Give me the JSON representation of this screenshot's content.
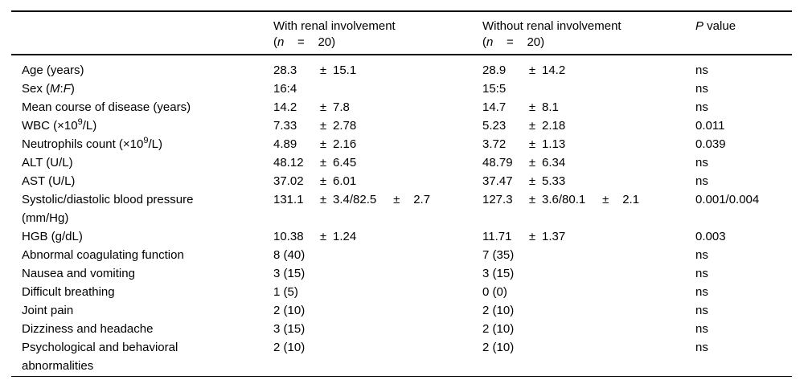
{
  "colors": {
    "background": "#ffffff",
    "text": "#000000",
    "rules": "#000000"
  },
  "table": {
    "header": {
      "col_characteristic": {
        "text": ""
      },
      "col_with": {
        "text": "With renal involvement (n = 20)",
        "html": "With renal involvement<br>(<i>n</i>&nbsp;&nbsp;&nbsp;&nbsp;=&nbsp;&nbsp;&nbsp;&nbsp;20)"
      },
      "col_without": {
        "text": "Without renal involvement (n = 20)",
        "html": "Without renal involvement<br>(<i>n</i>&nbsp;&nbsp;&nbsp;&nbsp;=&nbsp;&nbsp;&nbsp;&nbsp;20)"
      },
      "col_p": {
        "text": "P value",
        "html": "<i>P</i> value"
      }
    },
    "rows": [
      {
        "label": "Age (years)",
        "label_html": "Age (years)",
        "with": "28.3 ± 15.1",
        "without": "28.9 ± 14.2",
        "p": "ns"
      },
      {
        "label": "Sex (M:F)",
        "label_html": "Sex (<i>M</i>:<i>F</i>)",
        "with": "16:4",
        "without": "15:5",
        "p": "ns"
      },
      {
        "label": "Mean course of disease (years)",
        "label_html": "Mean course of disease (years)",
        "with": "14.2 ± 7.8",
        "without": "14.7 ± 8.1",
        "p": "ns"
      },
      {
        "label": "WBC (×10^9/L)",
        "label_html": "WBC (×10<sup>9</sup>/L)",
        "with": "7.33 ± 2.78",
        "without": "5.23 ± 2.18",
        "p": "0.011"
      },
      {
        "label": "Neutrophils count (×10^9/L)",
        "label_html": "Neutrophils count (×10<sup>9</sup>/L)",
        "with": "4.89 ± 2.16",
        "without": "3.72 ± 1.13",
        "p": "0.039"
      },
      {
        "label": "ALT (U/L)",
        "label_html": "ALT (U/L)",
        "with": "48.12 ± 6.45",
        "without": "48.79 ± 6.34",
        "p": "ns"
      },
      {
        "label": "AST (U/L)",
        "label_html": "AST (U/L)",
        "with": "37.02 ± 6.01",
        "without": "37.47 ± 5.33",
        "p": "ns"
      },
      {
        "label": "Systolic/diastolic blood pressure (mm/Hg)",
        "label_html": "Systolic/diastolic blood pressure<br>(mm/Hg)",
        "with": "131.1 ± 3.4/82.5 ± 2.7",
        "without": "127.3 ± 3.6/80.1 ± 2.1",
        "p": "0.001/0.004"
      },
      {
        "label": "HGB (g/dL)",
        "label_html": "HGB (g/dL)",
        "with": "10.38 ± 1.24",
        "without": "11.71 ± 1.37",
        "p": "0.003"
      },
      {
        "label": "Abnormal coagulating function",
        "label_html": "Abnormal coagulating function",
        "with": "8 (40)",
        "without": "7 (35)",
        "p": "ns"
      },
      {
        "label": "Nausea and vomiting",
        "label_html": "Nausea and vomiting",
        "with": "3 (15)",
        "without": "3 (15)",
        "p": "ns"
      },
      {
        "label": "Difficult breathing",
        "label_html": "Difficult breathing",
        "with": "1 (5)",
        "without": "0 (0)",
        "p": "ns"
      },
      {
        "label": "Joint pain",
        "label_html": "Joint pain",
        "with": "2 (10)",
        "without": "2 (10)",
        "p": "ns"
      },
      {
        "label": "Dizziness and headache",
        "label_html": "Dizziness and headache",
        "with": "3 (15)",
        "without": "2 (10)",
        "p": "ns"
      },
      {
        "label": "Psychological and behavioral abnormalities",
        "label_html": "Psychological and behavioral<br>abnormalities",
        "with": "2 (10)",
        "without": "2 (10)",
        "p": "ns"
      }
    ]
  }
}
